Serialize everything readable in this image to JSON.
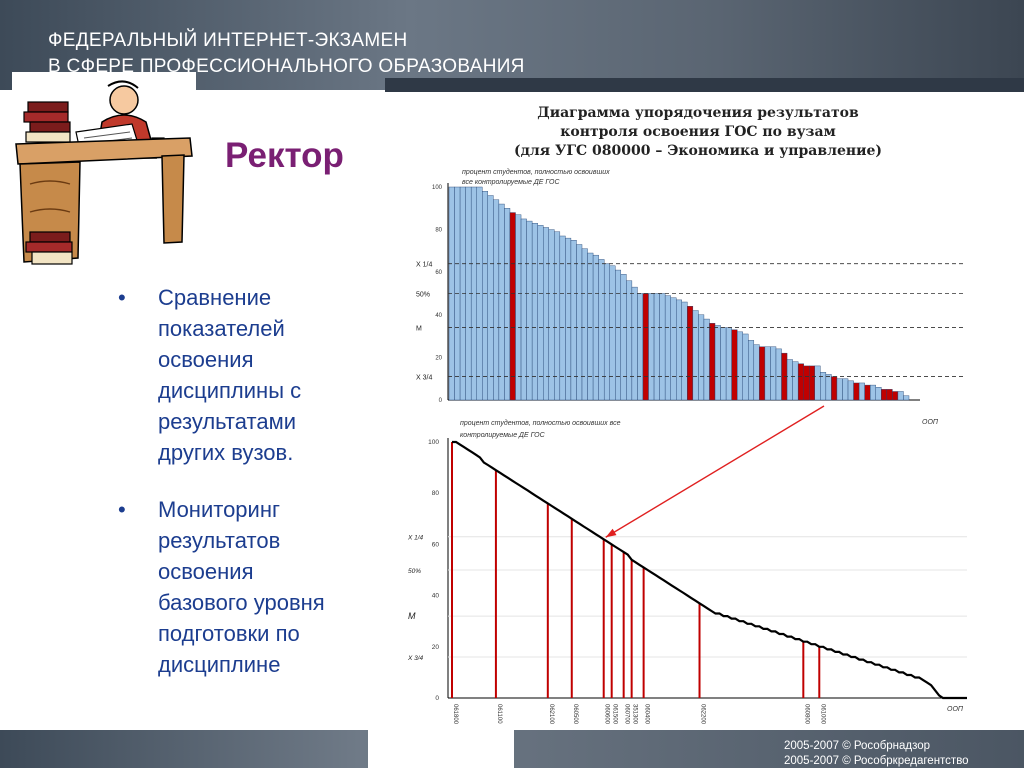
{
  "header": {
    "title_line1": "ФЕДЕРАЛЬНЫЙ ИНТЕРНЕТ-ЭКЗАМЕН",
    "title_line2": "В СФЕРЕ ПРОФЕССИОНАЛЬНОГО ОБРАЗОВАНИЯ"
  },
  "role_title": "Ректор",
  "bullets": [
    "Сравнение\nпоказателей\nосвоения\nдисциплины  с\nрезультатами\nдругих вузов.",
    "Мониторинг\nрезультатов\nосвоения\nбазового уровня\nподготовки по\nдисциплине"
  ],
  "bullet_symbol": "•",
  "footer": {
    "line1": "2005-2007 © Рособрнадзор",
    "line2": "2005-2007 © Рособркредагентство"
  },
  "colors": {
    "bar_blue": "#9dc3e6",
    "bar_red": "#c00000",
    "bullet_text": "#1c3d8f",
    "role_title": "#7a1f73",
    "arrow": "#e02020"
  },
  "chart_data": [
    {
      "type": "bar",
      "title_lines": [
        "Диаграмма упорядочения результатов",
        "контроля освоения ГОС по вузам",
        "(для УГС 080000 – Экономика и управление)"
      ],
      "ylabel": "процент студентов, полностью освоивших все контролируемые ДЕ ГОС",
      "xlabel": "ООП",
      "ylim": [
        0,
        100
      ],
      "yticks": [
        0,
        20,
        40,
        60,
        80,
        100
      ],
      "reference_lines": [
        {
          "label": "X 1/4",
          "value": 64
        },
        {
          "label": "50%",
          "value": 50
        },
        {
          "label": "M",
          "value": 34
        },
        {
          "label": "X 3/4",
          "value": 11
        }
      ],
      "values": [
        100,
        100,
        100,
        100,
        100,
        100,
        98,
        96,
        94,
        92,
        90,
        88,
        87,
        85,
        84,
        83,
        82,
        81,
        80,
        79,
        77,
        76,
        75,
        73,
        71,
        69,
        68,
        66,
        64,
        63,
        61,
        59,
        56,
        53,
        50,
        50,
        50,
        50,
        50,
        49,
        48,
        47,
        46,
        44,
        42,
        40,
        38,
        36,
        35,
        34,
        34,
        33,
        32,
        31,
        28,
        26,
        25,
        25,
        25,
        24,
        22,
        19,
        18,
        17,
        16,
        16,
        16,
        13,
        12,
        11,
        10,
        10,
        9,
        8,
        8,
        7,
        7,
        6,
        5,
        5,
        4,
        4,
        2
      ],
      "highlighted_indices": [
        11,
        35,
        43,
        47,
        51,
        56,
        60,
        63,
        64,
        65,
        69,
        73,
        75,
        78,
        79,
        80
      ]
    },
    {
      "type": "line",
      "ylabel": "процент студентов, полностью освоивших все контролируемые ДЕ ГОС",
      "xlabel": "ООП",
      "ylim": [
        0,
        100
      ],
      "yticks": [
        0,
        20,
        40,
        60,
        80,
        100
      ],
      "reference_lines": [
        {
          "label": "X 1/4",
          "value": 63
        },
        {
          "label": "50%",
          "value": 50
        },
        {
          "label": "M",
          "value": 32
        },
        {
          "label": "X 3/4",
          "value": 16
        }
      ],
      "values": [
        100,
        100,
        99,
        98,
        97,
        96,
        95,
        94,
        92,
        91,
        90,
        89,
        88,
        87,
        86,
        85,
        84,
        83,
        82,
        81,
        80,
        79,
        78,
        77,
        76,
        75,
        74,
        73,
        72,
        71,
        70,
        69,
        68,
        67,
        66,
        65,
        64,
        63,
        62,
        61,
        60,
        59,
        58,
        57,
        56,
        54,
        53,
        52,
        51,
        50,
        49,
        48,
        47,
        46,
        45,
        44,
        43,
        42,
        41,
        40,
        39,
        38,
        37,
        36,
        35,
        34,
        33,
        33,
        32,
        32,
        31,
        31,
        30,
        30,
        29,
        29,
        28,
        28,
        27,
        27,
        26,
        26,
        25,
        25,
        24,
        24,
        23,
        23,
        22,
        22,
        21,
        21,
        20,
        20,
        19,
        19,
        18,
        18,
        17,
        17,
        16,
        16,
        15,
        15,
        14,
        14,
        13,
        13,
        12,
        12,
        11,
        11,
        10,
        10,
        9,
        9,
        8,
        8,
        7,
        6,
        5,
        3,
        1,
        0,
        0,
        0,
        0,
        0,
        0,
        0
      ],
      "markers": [
        {
          "label": "061800",
          "index": 0
        },
        {
          "label": "061100",
          "index": 11
        },
        {
          "label": "062100",
          "index": 24
        },
        {
          "label": "060500",
          "index": 30
        },
        {
          "label": "060600",
          "index": 38
        },
        {
          "label": "061500",
          "index": 40
        },
        {
          "label": "060700",
          "index": 43
        },
        {
          "label": "351300",
          "index": 45
        },
        {
          "label": "060400",
          "index": 48
        },
        {
          "label": "062200",
          "index": 62
        },
        {
          "label": "060800",
          "index": 88
        },
        {
          "label": "061000",
          "index": 92
        }
      ]
    }
  ]
}
